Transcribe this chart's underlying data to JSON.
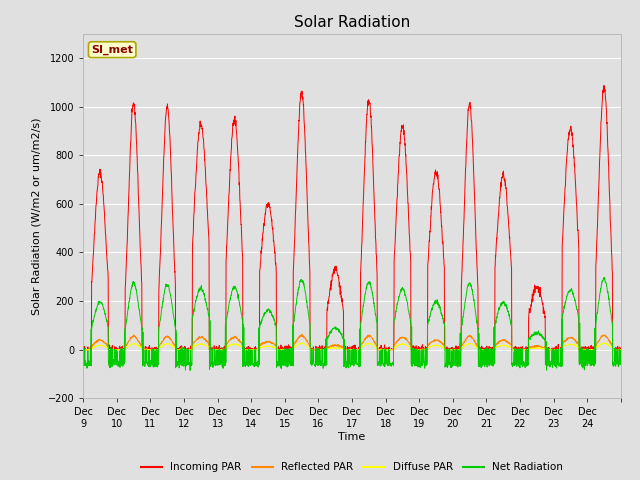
{
  "title": "Solar Radiation",
  "xlabel": "Time",
  "ylabel": "Solar Radiation (W/m2 or um/m2/s)",
  "ylim": [
    -200,
    1300
  ],
  "yticks": [
    -200,
    0,
    200,
    400,
    600,
    800,
    1000,
    1200
  ],
  "station_label": "SI_met",
  "line_colors": {
    "incoming": "#ff0000",
    "reflected": "#ff8800",
    "diffuse": "#ffff00",
    "net": "#00cc00"
  },
  "legend_labels": [
    "Incoming PAR",
    "Reflected PAR",
    "Diffuse PAR",
    "Net Radiation"
  ],
  "x_tick_labels": [
    "Dec 9",
    "Dec 10",
    "Dec 11",
    "Dec 12",
    "Dec 13",
    "Dec 14",
    "Dec 15",
    "Dec 16",
    "Dec 17",
    "Dec 18",
    "Dec 19",
    "Dec 20",
    "Dec 21",
    "Dec 22",
    "Dec 23",
    "Dec 24"
  ],
  "background_color": "#e0e0e0",
  "plot_bg_color": "#e0e0e0",
  "grid_color": "#ffffff",
  "title_fontsize": 11,
  "axis_label_fontsize": 8,
  "tick_fontsize": 7,
  "incoming_peaks": [
    730,
    1010,
    1000,
    930,
    950,
    600,
    1060,
    330,
    1025,
    920,
    730,
    1010,
    720,
    255,
    910,
    1080
  ],
  "net_night": -60
}
